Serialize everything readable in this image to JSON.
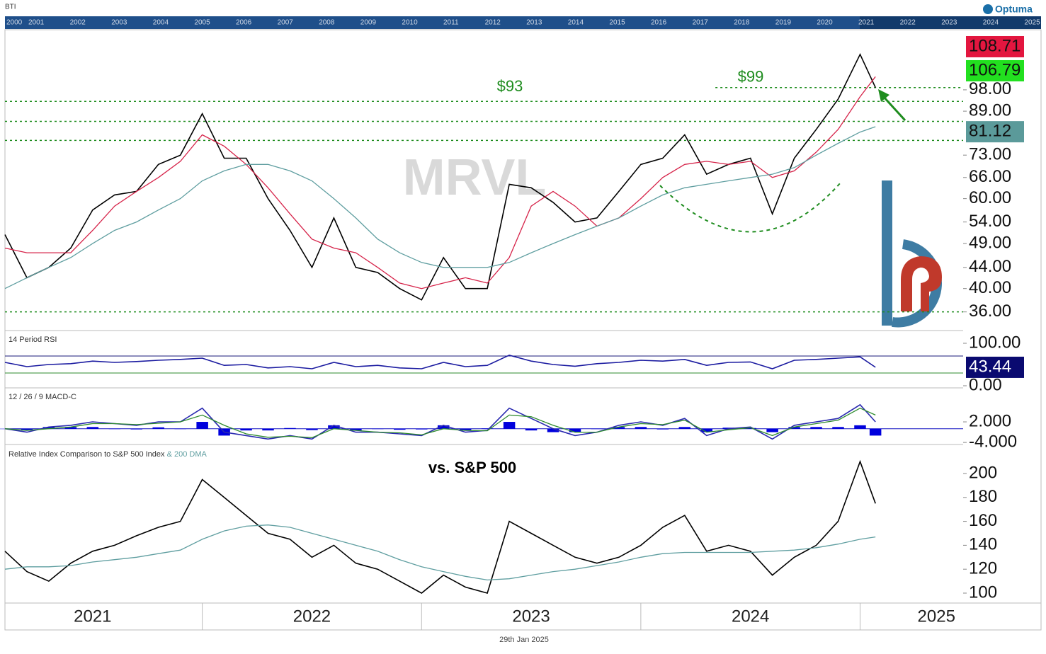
{
  "symbol_label": "BTI",
  "brand": "Optuma",
  "footer_date": "29th Jan 2025",
  "navigator": {
    "labels": [
      "2000",
      "2001",
      "2002",
      "2003",
      "2004",
      "2005",
      "2006",
      "2007",
      "2008",
      "2009",
      "2010",
      "2011",
      "2012",
      "2013",
      "2014",
      "2015",
      "2016",
      "2017",
      "2018",
      "2019",
      "2020",
      "2021",
      "2022",
      "2023",
      "2024",
      "2025"
    ]
  },
  "chart_data": [
    {
      "type": "line",
      "log_scale": true,
      "watermark": "MRVL",
      "xlim": [
        2021.1,
        2025.47
      ],
      "ylim": [
        33.1,
        128.5
      ],
      "yticks": [
        {
          "value": 98,
          "label": "98.00"
        },
        {
          "value": 89,
          "label": "89.00"
        },
        {
          "value": 73,
          "label": "73.00"
        },
        {
          "value": 66,
          "label": "66.00"
        },
        {
          "value": 60,
          "label": "60.00"
        },
        {
          "value": 54,
          "label": "54.00"
        },
        {
          "value": 49,
          "label": "49.00"
        },
        {
          "value": 44,
          "label": "44.00"
        },
        {
          "value": 40,
          "label": "40.00"
        },
        {
          "value": 36,
          "label": "36.00"
        }
      ],
      "x": [
        2021.1,
        2021.2,
        2021.3,
        2021.4,
        2021.5,
        2021.6,
        2021.7,
        2021.8,
        2021.9,
        2022.0,
        2022.1,
        2022.2,
        2022.3,
        2022.4,
        2022.5,
        2022.6,
        2022.7,
        2022.8,
        2022.9,
        2023.0,
        2023.1,
        2023.2,
        2023.3,
        2023.4,
        2023.5,
        2023.6,
        2023.7,
        2023.8,
        2023.9,
        2024.0,
        2024.1,
        2024.2,
        2024.3,
        2024.4,
        2024.5,
        2024.6,
        2024.7,
        2024.8,
        2024.9,
        2025.0,
        2025.07
      ],
      "series": [
        {
          "color": "#000000",
          "values": [
            51,
            42,
            44,
            48,
            57,
            61,
            62,
            70,
            73,
            88,
            72,
            72,
            60,
            52,
            44,
            55,
            44,
            43,
            40,
            38,
            46,
            40,
            40,
            64,
            63,
            59,
            54,
            55,
            62,
            70,
            72,
            80,
            67,
            70,
            72,
            56,
            72,
            82,
            94,
            115,
            99
          ]
        },
        {
          "color": "#d6244a",
          "values": [
            48,
            47,
            47,
            47,
            52,
            58,
            62,
            66,
            71,
            80,
            76,
            70,
            63,
            56,
            50,
            48,
            47,
            44,
            41,
            40,
            41,
            42,
            41,
            46,
            58,
            62,
            58,
            53,
            55,
            60,
            66,
            70,
            71,
            70,
            71,
            66,
            68,
            74,
            82,
            95,
            104
          ]
        },
        {
          "color": "#5f9ea0",
          "values": [
            40,
            42,
            44,
            46,
            49,
            52,
            54,
            57,
            60,
            65,
            68,
            70,
            70,
            68,
            65,
            60,
            55,
            50,
            47,
            45,
            44,
            44,
            44,
            45,
            47,
            49,
            51,
            53,
            55,
            58,
            61,
            63,
            64,
            65,
            66,
            67,
            69,
            73,
            77,
            81,
            83
          ]
        }
      ],
      "levels": [
        {
          "value": 93,
          "label": "$93"
        },
        {
          "value": 85
        },
        {
          "value": 78
        },
        {
          "value": 36
        },
        {
          "value": 99,
          "from": 2024.34,
          "label": "$99"
        }
      ],
      "level_color": "#1e8c1e",
      "price_labels": [
        {
          "value": 108.71,
          "color": "#e3163f"
        },
        {
          "value": 106.79,
          "color": "#22e01f"
        },
        {
          "value": 81.12,
          "color": "#5b9a9a"
        }
      ]
    },
    {
      "type": "line",
      "title": "14 Period RSI",
      "xlim": [
        2021.1,
        2025.47
      ],
      "ylim": [
        -5,
        125
      ],
      "yticks": [
        {
          "value": 100,
          "label": "100.00"
        },
        {
          "value": 0,
          "label": "0.00"
        }
      ],
      "levels": [
        {
          "value": 70,
          "color": "#1a1a7a"
        },
        {
          "value": 30,
          "color": "#2e8b2e"
        }
      ],
      "x": [
        2021.1,
        2021.2,
        2021.3,
        2021.4,
        2021.5,
        2021.6,
        2021.7,
        2021.8,
        2021.9,
        2022.0,
        2022.1,
        2022.2,
        2022.3,
        2022.4,
        2022.5,
        2022.6,
        2022.7,
        2022.8,
        2022.9,
        2023.0,
        2023.1,
        2023.2,
        2023.3,
        2023.4,
        2023.5,
        2023.6,
        2023.7,
        2023.8,
        2023.9,
        2024.0,
        2024.1,
        2024.2,
        2024.3,
        2024.4,
        2024.5,
        2024.6,
        2024.7,
        2024.8,
        2024.9,
        2025.0,
        2025.07
      ],
      "series": [
        {
          "color": "#1a1aa0",
          "label_color": "#0a0a70",
          "values": [
            55,
            45,
            50,
            52,
            58,
            55,
            57,
            60,
            62,
            65,
            48,
            50,
            42,
            45,
            40,
            55,
            45,
            48,
            42,
            40,
            55,
            45,
            48,
            72,
            58,
            50,
            46,
            52,
            55,
            60,
            58,
            62,
            48,
            55,
            56,
            40,
            60,
            62,
            65,
            68,
            43.44
          ]
        }
      ]
    },
    {
      "type": "line",
      "title": "12 / 26 / 9 MACD-C",
      "xlim": [
        2021.1,
        2025.47
      ],
      "ylim": [
        -4.6,
        11.3
      ],
      "yticks": [
        {
          "value": 2,
          "label": "2.000"
        },
        {
          "value": -4,
          "label": "-4.000"
        }
      ],
      "x": [
        2021.1,
        2021.2,
        2021.3,
        2021.4,
        2021.5,
        2021.6,
        2021.7,
        2021.8,
        2021.9,
        2022.0,
        2022.1,
        2022.2,
        2022.3,
        2022.4,
        2022.5,
        2022.6,
        2022.7,
        2022.8,
        2022.9,
        2023.0,
        2023.1,
        2023.2,
        2023.3,
        2023.4,
        2023.5,
        2023.6,
        2023.7,
        2023.8,
        2023.9,
        2024.0,
        2024.1,
        2024.2,
        2024.3,
        2024.4,
        2024.5,
        2024.6,
        2024.7,
        2024.8,
        2024.9,
        2025.0,
        2025.07
      ],
      "series": [
        {
          "color": "#2a2ab0",
          "values": [
            0,
            -1,
            0.5,
            1,
            2,
            1.5,
            1,
            2,
            2,
            6,
            -1,
            -2,
            -3,
            -2,
            -3,
            1,
            -1,
            -1,
            -1.5,
            -2,
            1,
            -1,
            -0.5,
            6,
            3,
            0,
            -2,
            -1,
            1,
            2,
            1,
            3,
            -2,
            0,
            0.5,
            -3,
            1,
            2,
            3,
            7,
            2
          ]
        },
        {
          "color": "#2e8b2e",
          "values": [
            0,
            -0.5,
            0,
            0.5,
            1.5,
            1.5,
            1.2,
            1.6,
            2,
            4,
            1,
            -1.5,
            -2.5,
            -2.2,
            -2.6,
            0,
            -0.5,
            -1,
            -1.2,
            -1.8,
            0,
            -0.5,
            -0.6,
            4,
            3.5,
            1,
            -1,
            -1,
            0.5,
            1.5,
            1.2,
            2.5,
            -1,
            -0.3,
            0.3,
            -2,
            0.5,
            1.5,
            2.5,
            6,
            4
          ]
        }
      ],
      "histogram": {
        "color": "#0000dd",
        "values": [
          0,
          -0.5,
          0.5,
          0.5,
          0.5,
          0,
          -0.2,
          0.4,
          0,
          2,
          -2,
          -0.5,
          -0.5,
          0.2,
          -0.4,
          1,
          -0.5,
          0,
          -0.3,
          -0.2,
          1,
          -0.5,
          0.1,
          2,
          -0.5,
          -1,
          -1,
          0,
          0.5,
          0.5,
          -0.2,
          0.5,
          -1,
          0.3,
          0.2,
          -1,
          0.5,
          0.5,
          0.5,
          1,
          -2
        ]
      }
    },
    {
      "type": "line",
      "annotation": "vs. S&P 500",
      "xlim": [
        2021.1,
        2025.47
      ],
      "ylim": [
        91.7,
        222.5
      ],
      "yticks": [
        200,
        180,
        160,
        140,
        120,
        100
      ],
      "xticks": [
        2021,
        2022,
        2023,
        2024,
        2025
      ],
      "x": [
        2021.1,
        2021.2,
        2021.3,
        2021.4,
        2021.5,
        2021.6,
        2021.7,
        2021.8,
        2021.9,
        2022.0,
        2022.1,
        2022.2,
        2022.3,
        2022.4,
        2022.5,
        2022.6,
        2022.7,
        2022.8,
        2022.9,
        2023.0,
        2023.1,
        2023.2,
        2023.3,
        2023.4,
        2023.5,
        2023.6,
        2023.7,
        2023.8,
        2023.9,
        2024.0,
        2024.1,
        2024.2,
        2024.3,
        2024.4,
        2024.5,
        2024.6,
        2024.7,
        2024.8,
        2024.9,
        2025.0,
        2025.07
      ],
      "series": [
        {
          "name": "Relative Index Comparison to S&P 500 Index",
          "color": "#000000",
          "values": [
            135,
            118,
            110,
            125,
            135,
            140,
            148,
            155,
            160,
            195,
            180,
            165,
            150,
            145,
            130,
            140,
            125,
            120,
            110,
            100,
            115,
            105,
            100,
            160,
            150,
            140,
            130,
            125,
            130,
            140,
            155,
            165,
            135,
            140,
            135,
            115,
            130,
            140,
            160,
            210,
            175
          ]
        },
        {
          "name": "& 200 DMA",
          "color": "#5f9ea0",
          "values": [
            120,
            122,
            122,
            123,
            126,
            128,
            130,
            133,
            136,
            145,
            152,
            156,
            157,
            155,
            150,
            145,
            140,
            135,
            128,
            122,
            118,
            114,
            111,
            112,
            115,
            118,
            120,
            123,
            126,
            130,
            133,
            134,
            134,
            134,
            134,
            135,
            136,
            138,
            141,
            145,
            147
          ]
        }
      ]
    }
  ]
}
